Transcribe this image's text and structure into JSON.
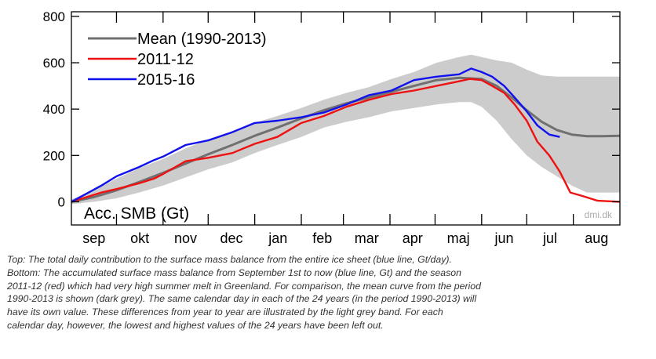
{
  "chart_data": {
    "type": "line",
    "title": "",
    "ylabel_inside": "Acc. SMB (Gt)",
    "watermark": "dmi.dk",
    "months": [
      "sep",
      "okt",
      "nov",
      "dec",
      "jan",
      "feb",
      "mar",
      "apr",
      "maj",
      "jun",
      "jul",
      "aug"
    ],
    "day_of_year_axis": "days since September 1st",
    "xlim": [
      0,
      365
    ],
    "ylim": [
      -100,
      820
    ],
    "yticks": [
      0,
      200,
      400,
      600,
      800
    ],
    "grid": false,
    "legend_position": "top-left",
    "colors": {
      "mean": "#707070",
      "s2011": "#ee1111",
      "s2015": "#1111ee",
      "band": "#cccccc"
    },
    "series": [
      {
        "name": "Mean (1990-2013)",
        "key": "mean",
        "x": [
          0,
          15,
          30,
          45,
          61,
          76,
          91,
          107,
          122,
          137,
          153,
          168,
          183,
          198,
          213,
          228,
          243,
          258,
          273,
          283,
          293,
          303,
          313,
          323,
          333,
          343,
          353,
          365
        ],
        "values": [
          0,
          20,
          50,
          85,
          125,
          165,
          205,
          245,
          285,
          320,
          360,
          395,
          425,
          450,
          475,
          500,
          525,
          535,
          530,
          500,
          450,
          395,
          345,
          310,
          290,
          283,
          283,
          285
        ]
      },
      {
        "name": "2011-12",
        "key": "s2011",
        "x": [
          0,
          10,
          20,
          30,
          45,
          55,
          61,
          76,
          91,
          107,
          122,
          137,
          153,
          168,
          183,
          198,
          213,
          228,
          243,
          258,
          265,
          273,
          280,
          288,
          295,
          303,
          310,
          318,
          325,
          332,
          340,
          350,
          365
        ],
        "values": [
          0,
          20,
          40,
          55,
          80,
          100,
          120,
          175,
          190,
          210,
          250,
          280,
          340,
          370,
          410,
          440,
          465,
          480,
          500,
          520,
          530,
          525,
          500,
          470,
          420,
          350,
          260,
          200,
          130,
          40,
          25,
          5,
          0
        ]
      },
      {
        "name": "2015-16",
        "key": "s2015",
        "x": [
          0,
          10,
          20,
          30,
          45,
          55,
          61,
          76,
          91,
          107,
          122,
          137,
          153,
          168,
          183,
          198,
          213,
          228,
          243,
          258,
          266,
          273,
          280,
          288,
          295,
          303,
          310,
          318,
          325
        ],
        "values": [
          0,
          35,
          70,
          110,
          150,
          180,
          195,
          245,
          265,
          300,
          340,
          350,
          365,
          385,
          420,
          460,
          480,
          525,
          540,
          550,
          575,
          560,
          540,
          500,
          450,
          390,
          330,
          290,
          280
        ]
      }
    ],
    "band": {
      "x": [
        0,
        15,
        30,
        45,
        61,
        76,
        91,
        107,
        122,
        137,
        153,
        168,
        183,
        198,
        213,
        228,
        243,
        258,
        266,
        273,
        283,
        293,
        303,
        313,
        323,
        333,
        343,
        353,
        365
      ],
      "lower": [
        -10,
        0,
        15,
        40,
        70,
        105,
        140,
        170,
        210,
        245,
        280,
        320,
        345,
        365,
        390,
        405,
        420,
        430,
        430,
        410,
        350,
        270,
        200,
        150,
        110,
        70,
        40,
        40,
        40
      ],
      "upper": [
        10,
        50,
        100,
        145,
        185,
        230,
        270,
        305,
        340,
        370,
        405,
        440,
        470,
        495,
        530,
        560,
        600,
        625,
        635,
        625,
        610,
        600,
        570,
        545,
        540,
        540,
        540,
        540,
        540
      ]
    }
  },
  "caption": {
    "lines": [
      "Top: The total daily contribution to the surface mass balance from the entire ice sheet (blue line, Gt/day).",
      "Bottom: The accumulated surface mass balance from September 1st to now (blue line, Gt) and the season",
      "2011-12 (red) which had very high summer melt in Greenland. For comparison, the mean curve from the period",
      "1990-2013 is shown (dark grey). The same calendar day in each of the 24 years (in the period 1990-2013) will",
      "have its own value. These differences from year to year are illustrated by the light grey band. For each",
      "calendar day, however, the lowest and highest values of the 24 years have been left out."
    ]
  }
}
